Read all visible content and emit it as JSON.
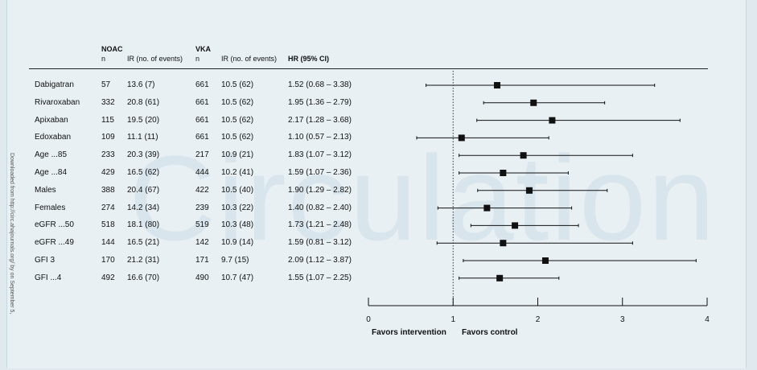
{
  "watermark": "Circulation",
  "side_note": "Downloaded from http://circ.ahajournals.org/ by on September 5,",
  "columns": {
    "noac_title": "NOAC",
    "noac_n": "n",
    "noac_ir": "IR (no. of events)",
    "vka_title": "VKA",
    "vka_n": "n",
    "vka_ir": "IR (no. of events)",
    "hr": "HR (95% CI)"
  },
  "favors": {
    "left": "Favors intervention",
    "right": "Favors control"
  },
  "chart_data": {
    "type": "forest",
    "x_axis": {
      "min": 0,
      "max": 4,
      "ticks": [
        "0",
        "1",
        "2",
        "3",
        "4"
      ],
      "reference_line": 1
    },
    "rows": [
      {
        "label": "Dabigatran",
        "noac_n": "57",
        "noac_ir": "13.6 (7)",
        "vka_n": "661",
        "vka_ir": "10.5 (62)",
        "hr_text": "1.52 (0.68 – 3.38)",
        "hr": 1.52,
        "lo": 0.68,
        "hi": 3.38
      },
      {
        "label": "Rivaroxaban",
        "noac_n": "332",
        "noac_ir": "20.8 (61)",
        "vka_n": "661",
        "vka_ir": "10.5 (62)",
        "hr_text": "1.95 (1.36 – 2.79)",
        "hr": 1.95,
        "lo": 1.36,
        "hi": 2.79
      },
      {
        "label": "Apixaban",
        "noac_n": "115",
        "noac_ir": "19.5 (20)",
        "vka_n": "661",
        "vka_ir": "10.5 (62)",
        "hr_text": "2.17 (1.28 – 3.68)",
        "hr": 2.17,
        "lo": 1.28,
        "hi": 3.68
      },
      {
        "label": "Edoxaban",
        "noac_n": "109",
        "noac_ir": "11.1 (11)",
        "vka_n": "661",
        "vka_ir": "10.5 (62)",
        "hr_text": "1.10 (0.57 – 2.13)",
        "hr": 1.1,
        "lo": 0.57,
        "hi": 2.13
      },
      {
        "label": "Age ...85",
        "noac_n": "233",
        "noac_ir": "20.3 (39)",
        "vka_n": "217",
        "vka_ir": "10.9 (21)",
        "hr_text": "1.83 (1.07 – 3.12)",
        "hr": 1.83,
        "lo": 1.07,
        "hi": 3.12
      },
      {
        "label": "Age ...84",
        "noac_n": "429",
        "noac_ir": "16.5 (62)",
        "vka_n": "444",
        "vka_ir": "10.2 (41)",
        "hr_text": "1.59 (1.07 – 2.36)",
        "hr": 1.59,
        "lo": 1.07,
        "hi": 2.36
      },
      {
        "label": "Males",
        "noac_n": "388",
        "noac_ir": "20.4 (67)",
        "vka_n": "422",
        "vka_ir": "10.5 (40)",
        "hr_text": "1.90 (1.29 – 2.82)",
        "hr": 1.9,
        "lo": 1.29,
        "hi": 2.82
      },
      {
        "label": "Females",
        "noac_n": "274",
        "noac_ir": "14.2 (34)",
        "vka_n": "239",
        "vka_ir": "10.3 (22)",
        "hr_text": "1.40 (0.82 – 2.40)",
        "hr": 1.4,
        "lo": 0.82,
        "hi": 2.4
      },
      {
        "label": "eGFR ...50",
        "noac_n": "518",
        "noac_ir": "18.1 (80)",
        "vka_n": "519",
        "vka_ir": "10.3 (48)",
        "hr_text": "1.73 (1.21 – 2.48)",
        "hr": 1.73,
        "lo": 1.21,
        "hi": 2.48
      },
      {
        "label": "eGFR ...49",
        "noac_n": "144",
        "noac_ir": "16.5 (21)",
        "vka_n": "142",
        "vka_ir": "10.9 (14)",
        "hr_text": "1.59 (0.81 – 3.12)",
        "hr": 1.59,
        "lo": 0.81,
        "hi": 3.12
      },
      {
        "label": "GFI 3",
        "noac_n": "170",
        "noac_ir": "21.2 (31)",
        "vka_n": "171",
        "vka_ir": "9.7 (15)",
        "hr_text": "2.09 (1.12 – 3.87)",
        "hr": 2.09,
        "lo": 1.12,
        "hi": 3.87
      },
      {
        "label": "GFI ...4",
        "noac_n": "492",
        "noac_ir": "16.6 (70)",
        "vka_n": "490",
        "vka_ir": "10.7 (47)",
        "hr_text": "1.55 (1.07 – 2.25)",
        "hr": 1.55,
        "lo": 1.07,
        "hi": 2.25
      }
    ]
  }
}
